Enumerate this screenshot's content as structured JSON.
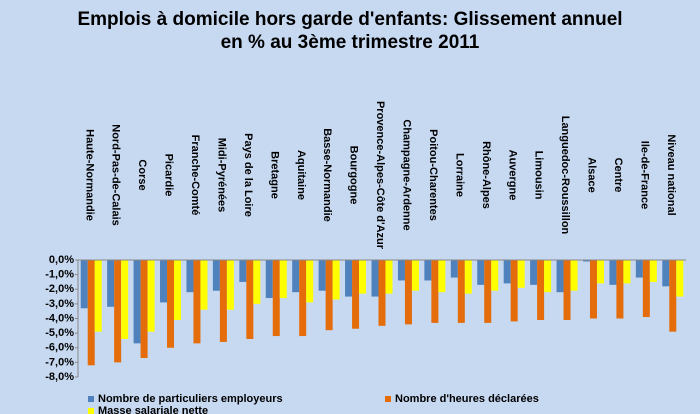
{
  "chart_data": {
    "type": "bar",
    "title": "Emplois à domicile hors garde d'enfants: Glissement annuel en % au 3ème trimestre 2011",
    "categories": [
      "Haute-Normandie",
      "Nord-Pas-de-Calais",
      "Corse",
      "Picardie",
      "Franche-Comté",
      "Midi-Pyrénées",
      "Pays de la Loire",
      "Bretagne",
      "Aquitaine",
      "Basse-Normandie",
      "Bourgogne",
      "Provence-Alpes-Côte d'Azur",
      "Champagne-Ardenne",
      "Poitou-Charentes",
      "Lorraine",
      "Rhône-Alpes",
      "Auvergne",
      "Limousin",
      "Languedoc-Roussillon",
      "Alsace",
      "Centre",
      "Ile-de-France",
      "Niveau national"
    ],
    "series": [
      {
        "name": "Nombre de particuliers employeurs",
        "color": "#4f81bd",
        "values": [
          -3.3,
          -3.2,
          -5.7,
          -2.9,
          -2.2,
          -2.1,
          -1.5,
          -2.6,
          -2.2,
          -2.1,
          -2.5,
          -2.5,
          -1.4,
          -1.4,
          -1.2,
          -1.7,
          -1.6,
          -1.7,
          -2.2,
          -0.1,
          -1.7,
          -1.2,
          -1.8
        ]
      },
      {
        "name": "Nombre d'heures déclarées",
        "color": "#e46c0a",
        "values": [
          -7.2,
          -7.0,
          -6.7,
          -6.0,
          -5.7,
          -5.6,
          -5.4,
          -5.2,
          -5.2,
          -4.8,
          -4.7,
          -4.5,
          -4.4,
          -4.3,
          -4.3,
          -4.3,
          -4.2,
          -4.1,
          -4.1,
          -4.0,
          -4.0,
          -3.9,
          -4.9
        ]
      },
      {
        "name": "Masse salariale nette",
        "color": "#ffff00",
        "values": [
          -4.9,
          -5.4,
          -4.9,
          -4.1,
          -3.4,
          -3.4,
          -3.0,
          -2.6,
          -2.9,
          -2.7,
          -2.3,
          -2.3,
          -2.1,
          -2.2,
          -2.3,
          -2.1,
          -1.9,
          -2.2,
          -2.1,
          -1.6,
          -1.6,
          -1.5,
          -2.5
        ]
      }
    ],
    "ylim": [
      -8,
      0
    ],
    "yticks": [
      {
        "value": 0,
        "label": "0,0%"
      },
      {
        "value": -1,
        "label": "-1,0%"
      },
      {
        "value": -2,
        "label": "-2,0%"
      },
      {
        "value": -3,
        "label": "-3,0%"
      },
      {
        "value": -4,
        "label": "-4,0%"
      },
      {
        "value": -5,
        "label": "-5,0%"
      },
      {
        "value": -6,
        "label": "-6,0%"
      },
      {
        "value": -7,
        "label": "-7,0%"
      },
      {
        "value": -8,
        "label": "-8,0%"
      }
    ],
    "legend": "bottom"
  }
}
